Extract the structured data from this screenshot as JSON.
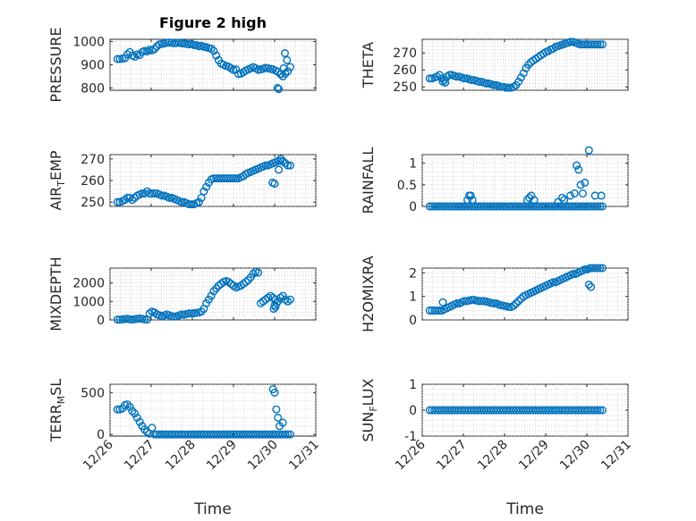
{
  "figure_title": "Figure 2 high",
  "x_axis_label": "Time",
  "x_tick_labels": [
    "12/26",
    "12/27",
    "12/28",
    "12/29",
    "12/30",
    "12/31"
  ],
  "marker_color": "#0072BD",
  "chart_data": [
    {
      "type": "scatter",
      "title": "Figure 2 high",
      "ylabel": "PRESSURE",
      "xlabel": "",
      "xlim": [
        0,
        5
      ],
      "ylim": [
        790,
        1010
      ],
      "yticks": [
        800,
        900,
        1000
      ],
      "x": [
        0.18,
        0.24,
        0.3,
        0.36,
        0.42,
        0.48,
        0.54,
        0.6,
        0.66,
        0.72,
        0.78,
        0.84,
        0.9,
        0.96,
        1.02,
        1.08,
        1.14,
        1.2,
        1.26,
        1.32,
        1.38,
        1.44,
        1.5,
        1.56,
        1.62,
        1.68,
        1.74,
        1.8,
        1.86,
        1.92,
        1.98,
        2.04,
        2.1,
        2.16,
        2.22,
        2.28,
        2.34,
        2.4,
        2.46,
        2.52,
        2.58,
        2.64,
        2.7,
        2.76,
        2.82,
        2.88,
        2.94,
        3.0,
        3.06,
        3.12,
        3.18,
        3.24,
        3.3,
        3.36,
        3.42,
        3.48,
        3.54,
        3.6,
        3.66,
        3.72,
        3.78,
        3.84,
        3.9,
        3.96,
        4.02,
        4.08,
        4.14,
        4.2,
        4.26,
        4.32,
        4.38,
        4.07,
        4.1,
        4.16,
        4.22,
        4.25,
        4.3
      ],
      "y": [
        925,
        925,
        927,
        928,
        945,
        955,
        940,
        935,
        945,
        942,
        955,
        960,
        958,
        965,
        962,
        968,
        980,
        988,
        990,
        992,
        995,
        996,
        995,
        993,
        994,
        995,
        993,
        992,
        990,
        988,
        990,
        985,
        985,
        980,
        982,
        978,
        976,
        972,
        970,
        960,
        940,
        920,
        905,
        900,
        895,
        892,
        885,
        878,
        880,
        860,
        862,
        868,
        875,
        880,
        885,
        890,
        885,
        878,
        880,
        883,
        887,
        885,
        882,
        880,
        875,
        870,
        860,
        850,
        862,
        872,
        890,
        800,
        795,
        860,
        885,
        950,
        920
      ]
    },
    {
      "type": "scatter",
      "title": "",
      "ylabel": "THETA",
      "xlabel": "",
      "xlim": [
        0,
        5
      ],
      "ylim": [
        248,
        278
      ],
      "yticks": [
        250,
        260,
        270
      ],
      "x": [
        0.18,
        0.24,
        0.3,
        0.36,
        0.42,
        0.48,
        0.54,
        0.6,
        0.66,
        0.72,
        0.78,
        0.84,
        0.9,
        0.96,
        1.02,
        1.08,
        1.14,
        1.2,
        1.26,
        1.32,
        1.38,
        1.44,
        1.5,
        1.56,
        1.62,
        1.68,
        1.74,
        1.8,
        1.86,
        1.92,
        1.98,
        2.04,
        2.1,
        2.16,
        2.22,
        2.28,
        2.34,
        2.4,
        2.46,
        2.52,
        2.58,
        2.64,
        2.7,
        2.76,
        2.82,
        2.88,
        2.94,
        3.0,
        3.06,
        3.12,
        3.18,
        3.24,
        3.3,
        3.36,
        3.42,
        3.48,
        3.54,
        3.6,
        3.66,
        3.72,
        3.78,
        3.84,
        3.9,
        3.96,
        4.02,
        4.08,
        4.14,
        4.2,
        4.26,
        4.32,
        4.38,
        0.5,
        0.56
      ],
      "y": [
        255,
        255,
        255.5,
        256,
        257,
        255,
        254,
        256,
        257,
        257,
        256.5,
        256,
        256,
        255.5,
        255,
        255,
        254.5,
        254,
        254,
        253.5,
        253,
        253,
        252.5,
        252,
        252,
        251.5,
        251,
        251,
        250.5,
        250,
        250,
        249.5,
        249.5,
        249.5,
        250,
        251,
        253,
        255.5,
        258,
        261,
        263,
        264.5,
        265.5,
        266.5,
        267.5,
        268.5,
        269.5,
        270.5,
        271,
        272,
        272.5,
        273.5,
        274,
        274.5,
        275,
        275.5,
        276,
        276.5,
        276.5,
        276,
        275.5,
        275,
        275,
        275,
        275,
        275,
        275,
        275,
        275,
        275,
        275,
        253,
        252.5
      ]
    },
    {
      "type": "scatter",
      "title": "",
      "ylabel": "AIR_TEMP",
      "xlabel": "",
      "xlim": [
        0,
        5
      ],
      "ylim": [
        248,
        272
      ],
      "yticks": [
        250,
        260,
        270
      ],
      "x": [
        0.18,
        0.24,
        0.3,
        0.36,
        0.42,
        0.48,
        0.54,
        0.6,
        0.66,
        0.72,
        0.78,
        0.84,
        0.9,
        0.96,
        1.02,
        1.08,
        1.14,
        1.2,
        1.26,
        1.32,
        1.38,
        1.44,
        1.5,
        1.56,
        1.62,
        1.68,
        1.74,
        1.8,
        1.86,
        1.92,
        1.98,
        2.04,
        2.1,
        2.16,
        2.22,
        2.28,
        2.34,
        2.4,
        2.46,
        2.52,
        2.58,
        2.64,
        2.7,
        2.76,
        2.82,
        2.88,
        2.94,
        3.0,
        3.06,
        3.12,
        3.18,
        3.24,
        3.3,
        3.36,
        3.42,
        3.48,
        3.54,
        3.6,
        3.66,
        3.72,
        3.78,
        3.84,
        3.9,
        3.96,
        4.02,
        4.08,
        4.14,
        4.2,
        4.26,
        4.32,
        4.38,
        3.95,
        4.0,
        4.1,
        4.15
      ],
      "y": [
        250,
        250,
        250.5,
        251,
        252,
        252,
        251,
        252,
        253,
        253.5,
        254,
        254,
        255,
        254,
        254,
        254,
        254,
        253.5,
        253,
        253,
        252.5,
        252,
        252,
        251.5,
        251,
        250.5,
        250,
        250,
        249.5,
        249,
        249,
        249,
        249.5,
        250,
        252,
        255,
        257,
        259,
        260.5,
        261,
        261,
        261,
        261,
        261,
        261,
        261,
        261,
        261,
        261,
        261,
        261.5,
        262,
        263,
        263.5,
        264,
        264.5,
        265,
        265.5,
        266,
        266.5,
        267,
        267,
        267.5,
        268,
        268.5,
        269,
        269,
        269,
        268,
        267,
        267,
        259,
        258.5,
        265,
        270
      ]
    },
    {
      "type": "scatter",
      "title": "",
      "ylabel": "RAINFALL",
      "xlabel": "",
      "xlim": [
        0,
        5
      ],
      "ylim": [
        0,
        1.2
      ],
      "yticks": [
        0,
        0.5,
        1
      ],
      "x": [
        0.18,
        0.24,
        0.3,
        0.36,
        0.42,
        0.48,
        0.54,
        0.6,
        0.66,
        0.72,
        0.78,
        0.84,
        0.9,
        0.96,
        1.02,
        1.08,
        1.14,
        1.2,
        1.26,
        1.32,
        1.38,
        1.44,
        1.5,
        1.56,
        1.62,
        1.68,
        1.74,
        1.8,
        1.86,
        1.92,
        1.98,
        2.04,
        2.1,
        2.16,
        2.22,
        2.28,
        2.34,
        2.4,
        2.46,
        2.52,
        2.58,
        2.64,
        2.7,
        2.76,
        2.82,
        2.88,
        2.94,
        3.0,
        3.06,
        3.12,
        3.18,
        3.24,
        3.3,
        3.36,
        3.42,
        3.48,
        3.54,
        3.6,
        3.66,
        3.72,
        3.78,
        3.84,
        3.9,
        3.96,
        4.02,
        4.08,
        4.14,
        4.2,
        4.26,
        4.32,
        4.38,
        1.1,
        1.14,
        1.18,
        1.22,
        2.55,
        2.6,
        2.65,
        2.72,
        3.3,
        3.4,
        3.45,
        3.6,
        3.7,
        3.75,
        3.8,
        3.85,
        3.9,
        3.95,
        4.05,
        4.2,
        4.35
      ],
      "y": [
        0,
        0,
        0,
        0,
        0,
        0,
        0,
        0,
        0,
        0,
        0,
        0,
        0,
        0,
        0,
        0,
        0,
        0,
        0,
        0,
        0,
        0,
        0,
        0,
        0,
        0,
        0,
        0,
        0,
        0,
        0,
        0,
        0,
        0,
        0,
        0,
        0,
        0,
        0,
        0,
        0,
        0,
        0,
        0,
        0,
        0,
        0,
        0,
        0,
        0,
        0,
        0,
        0,
        0,
        0,
        0,
        0,
        0,
        0,
        0,
        0,
        0,
        0,
        0,
        0,
        0,
        0,
        0,
        0,
        0,
        0,
        0.15,
        0.25,
        0.25,
        0.15,
        0.15,
        0.2,
        0.25,
        0.15,
        0.1,
        0.2,
        0.15,
        0.25,
        0.3,
        0.95,
        0.85,
        0.5,
        0.3,
        0.55,
        1.3,
        0.25,
        0.25
      ]
    },
    {
      "type": "scatter",
      "title": "",
      "ylabel": "MIXDEPTH",
      "xlabel": "",
      "xlim": [
        0,
        5
      ],
      "ylim": [
        0,
        2800
      ],
      "yticks": [
        0,
        1000,
        2000
      ],
      "x": [
        0.18,
        0.24,
        0.3,
        0.36,
        0.42,
        0.48,
        0.54,
        0.6,
        0.66,
        0.72,
        0.78,
        0.84,
        0.9,
        0.96,
        1.02,
        1.08,
        1.14,
        1.2,
        1.26,
        1.32,
        1.38,
        1.44,
        1.5,
        1.56,
        1.62,
        1.68,
        1.74,
        1.8,
        1.86,
        1.92,
        1.98,
        2.04,
        2.1,
        2.16,
        2.22,
        2.28,
        2.34,
        2.4,
        2.46,
        2.52,
        2.58,
        2.64,
        2.7,
        2.76,
        2.82,
        2.88,
        2.94,
        3.0,
        3.06,
        3.12,
        3.18,
        3.24,
        3.3,
        3.36,
        3.42,
        3.48,
        3.54,
        3.6,
        3.66,
        3.72,
        3.78,
        3.84,
        3.9,
        3.96,
        4.02,
        4.08,
        4.14,
        4.2,
        4.26,
        4.32,
        4.38,
        3.98,
        4.0,
        4.02,
        4.05
      ],
      "y": [
        20,
        20,
        30,
        50,
        60,
        30,
        20,
        40,
        60,
        80,
        60,
        30,
        20,
        350,
        450,
        400,
        300,
        250,
        200,
        250,
        300,
        250,
        200,
        180,
        200,
        250,
        300,
        280,
        320,
        350,
        350,
        360,
        380,
        400,
        450,
        600,
        900,
        1100,
        1300,
        1550,
        1700,
        1850,
        1950,
        2050,
        2100,
        2050,
        1950,
        1850,
        1750,
        1800,
        1850,
        1950,
        2050,
        2150,
        2300,
        2500,
        2600,
        2550,
        900,
        1000,
        1100,
        1200,
        1300,
        1200,
        1100,
        1000,
        1200,
        1300,
        1100,
        1000,
        1100,
        600,
        800,
        700,
        900
      ]
    },
    {
      "type": "scatter",
      "title": "",
      "ylabel": "H2OMIXRA",
      "xlabel": "",
      "xlim": [
        0,
        5
      ],
      "ylim": [
        0,
        2.2
      ],
      "yticks": [
        0,
        1,
        2
      ],
      "x": [
        0.18,
        0.24,
        0.3,
        0.36,
        0.42,
        0.48,
        0.54,
        0.6,
        0.66,
        0.72,
        0.78,
        0.84,
        0.9,
        0.96,
        1.02,
        1.08,
        1.14,
        1.2,
        1.26,
        1.32,
        1.38,
        1.44,
        1.5,
        1.56,
        1.62,
        1.68,
        1.74,
        1.8,
        1.86,
        1.92,
        1.98,
        2.04,
        2.1,
        2.16,
        2.22,
        2.28,
        2.34,
        2.4,
        2.46,
        2.52,
        2.58,
        2.64,
        2.7,
        2.76,
        2.82,
        2.88,
        2.94,
        3.0,
        3.06,
        3.12,
        3.18,
        3.24,
        3.3,
        3.36,
        3.42,
        3.48,
        3.54,
        3.6,
        3.66,
        3.72,
        3.78,
        3.84,
        3.9,
        3.96,
        4.02,
        4.08,
        4.14,
        4.2,
        4.26,
        4.32,
        4.38,
        0.5,
        4.05,
        4.1
      ],
      "y": [
        0.4,
        0.4,
        0.4,
        0.4,
        0.4,
        0.4,
        0.45,
        0.5,
        0.55,
        0.6,
        0.65,
        0.7,
        0.7,
        0.75,
        0.8,
        0.8,
        0.82,
        0.85,
        0.85,
        0.82,
        0.8,
        0.8,
        0.8,
        0.78,
        0.75,
        0.72,
        0.7,
        0.7,
        0.65,
        0.62,
        0.6,
        0.58,
        0.55,
        0.55,
        0.6,
        0.7,
        0.8,
        0.9,
        1.0,
        1.05,
        1.1,
        1.15,
        1.2,
        1.25,
        1.3,
        1.35,
        1.4,
        1.45,
        1.5,
        1.55,
        1.6,
        1.6,
        1.65,
        1.7,
        1.75,
        1.8,
        1.85,
        1.9,
        1.95,
        1.95,
        2.0,
        2.05,
        2.1,
        2.15,
        2.15,
        2.2,
        2.2,
        2.2,
        2.2,
        2.2,
        2.2,
        0.75,
        1.5,
        1.4
      ]
    },
    {
      "type": "scatter",
      "title": "",
      "ylabel": "TERR_MSL",
      "xlabel": "",
      "xlim": [
        0,
        5
      ],
      "ylim": [
        -20,
        600
      ],
      "yticks": [
        0,
        500
      ],
      "x": [
        0.18,
        0.24,
        0.3,
        0.36,
        0.42,
        0.48,
        0.54,
        0.6,
        0.66,
        0.72,
        0.78,
        0.84,
        0.9,
        0.96,
        1.02,
        1.08,
        1.14,
        1.2,
        1.26,
        1.32,
        1.38,
        1.44,
        1.5,
        1.56,
        1.62,
        1.68,
        1.74,
        1.8,
        1.86,
        1.92,
        1.98,
        2.04,
        2.1,
        2.16,
        2.22,
        2.28,
        2.34,
        2.4,
        2.46,
        2.52,
        2.58,
        2.64,
        2.7,
        2.76,
        2.82,
        2.88,
        2.94,
        3.0,
        3.06,
        3.12,
        3.18,
        3.24,
        3.3,
        3.36,
        3.42,
        3.48,
        3.54,
        3.6,
        3.66,
        3.72,
        3.78,
        3.84,
        3.9,
        3.96,
        4.02,
        4.08,
        4.14,
        4.2,
        4.26,
        4.32,
        4.38,
        3.96,
        4.0,
        4.04,
        4.08,
        4.12,
        4.2
      ],
      "y": [
        300,
        300,
        310,
        350,
        360,
        330,
        280,
        250,
        200,
        150,
        100,
        60,
        30,
        10,
        80,
        0,
        0,
        0,
        0,
        0,
        0,
        0,
        0,
        0,
        0,
        0,
        0,
        0,
        0,
        0,
        0,
        0,
        0,
        0,
        0,
        0,
        0,
        0,
        0,
        0,
        0,
        0,
        0,
        0,
        0,
        0,
        0,
        0,
        0,
        0,
        0,
        0,
        0,
        0,
        0,
        0,
        0,
        0,
        0,
        0,
        0,
        0,
        0,
        0,
        0,
        0,
        0,
        0,
        0,
        0,
        0,
        540,
        500,
        300,
        200,
        100,
        140
      ]
    },
    {
      "type": "scatter",
      "title": "",
      "ylabel": "SUN_FLUX",
      "xlabel": "",
      "xlim": [
        0,
        5
      ],
      "ylim": [
        -1,
        1
      ],
      "yticks": [
        -1,
        0,
        1
      ],
      "x": [
        0.18,
        0.24,
        0.3,
        0.36,
        0.42,
        0.48,
        0.54,
        0.6,
        0.66,
        0.72,
        0.78,
        0.84,
        0.9,
        0.96,
        1.02,
        1.08,
        1.14,
        1.2,
        1.26,
        1.32,
        1.38,
        1.44,
        1.5,
        1.56,
        1.62,
        1.68,
        1.74,
        1.8,
        1.86,
        1.92,
        1.98,
        2.04,
        2.1,
        2.16,
        2.22,
        2.28,
        2.34,
        2.4,
        2.46,
        2.52,
        2.58,
        2.64,
        2.7,
        2.76,
        2.82,
        2.88,
        2.94,
        3.0,
        3.06,
        3.12,
        3.18,
        3.24,
        3.3,
        3.36,
        3.42,
        3.48,
        3.54,
        3.6,
        3.66,
        3.72,
        3.78,
        3.84,
        3.9,
        3.96,
        4.02,
        4.08,
        4.14,
        4.2,
        4.26,
        4.32,
        4.38
      ],
      "y": [
        0,
        0,
        0,
        0,
        0,
        0,
        0,
        0,
        0,
        0,
        0,
        0,
        0,
        0,
        0,
        0,
        0,
        0,
        0,
        0,
        0,
        0,
        0,
        0,
        0,
        0,
        0,
        0,
        0,
        0,
        0,
        0,
        0,
        0,
        0,
        0,
        0,
        0,
        0,
        0,
        0,
        0,
        0,
        0,
        0,
        0,
        0,
        0,
        0,
        0,
        0,
        0,
        0,
        0,
        0,
        0,
        0,
        0,
        0,
        0,
        0,
        0,
        0,
        0,
        0,
        0,
        0,
        0,
        0,
        0,
        0
      ]
    }
  ]
}
